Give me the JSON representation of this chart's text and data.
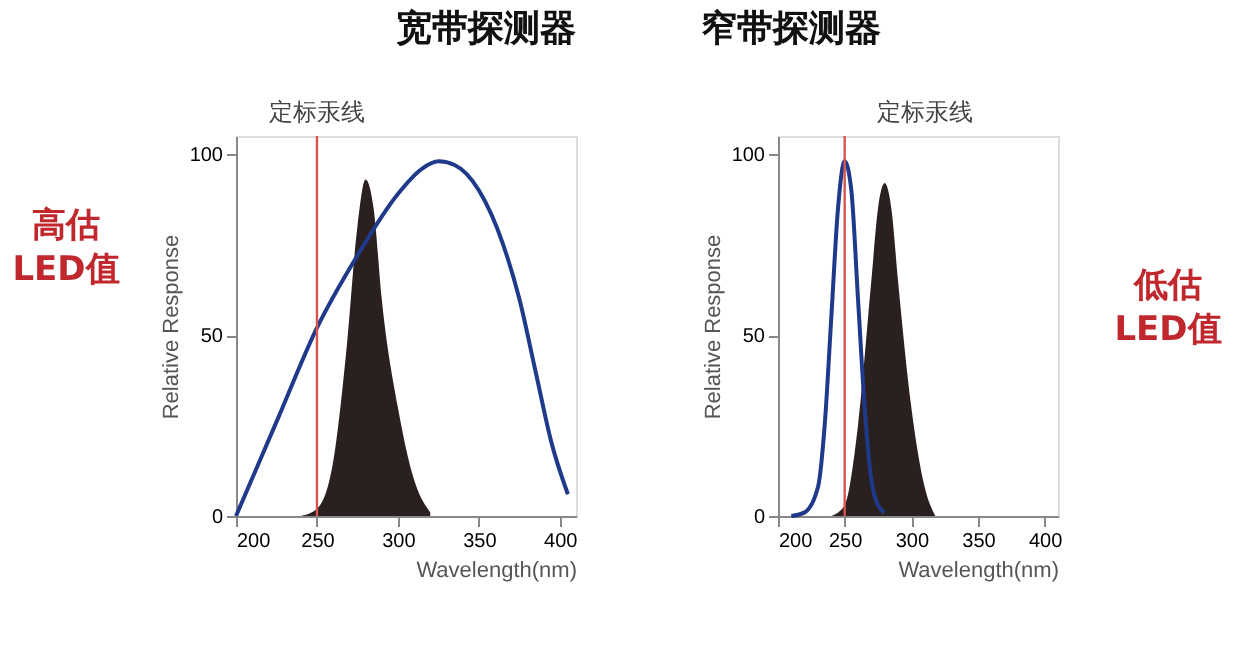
{
  "chart_data": [
    {
      "type": "line",
      "title": "宽带探测器",
      "xlabel": "Wavelength(nm)",
      "ylabel": "Relative Response",
      "xlim": [
        200,
        410
      ],
      "xticks": [
        200,
        250,
        300,
        350,
        400
      ],
      "ylim": [
        0,
        105
      ],
      "yticks": [
        0,
        50,
        100
      ],
      "grid": false,
      "series": [
        {
          "type": "area",
          "color": "#2b2020",
          "x": [
            240,
            250,
            260,
            268,
            275,
            280,
            285,
            290,
            300,
            310,
            320
          ],
          "values": [
            0,
            2,
            15,
            45,
            80,
            93,
            85,
            60,
            30,
            10,
            1
          ]
        },
        {
          "color": "#1f3a8a",
          "x": [
            200,
            225,
            250,
            275,
            300,
            315,
            325,
            335,
            350,
            365,
            375,
            385,
            395,
            405
          ],
          "values": [
            0,
            26,
            52,
            72,
            89,
            96,
            98,
            97,
            90,
            75,
            60,
            40,
            20,
            6
          ]
        }
      ],
      "ref_lines": [
        {
          "axis": "x",
          "value": 250,
          "label": "定标汞线",
          "color": "#d9534f"
        }
      ],
      "annotations": [
        "高估\nLED值"
      ]
    },
    {
      "type": "line",
      "title": "窄带探测器",
      "xlabel": "Wavelength(nm)",
      "ylabel": "Relative Response",
      "xlim": [
        200,
        410
      ],
      "xticks": [
        200,
        250,
        300,
        350,
        400
      ],
      "ylim": [
        0,
        105
      ],
      "yticks": [
        0,
        50,
        100
      ],
      "grid": false,
      "series": [
        {
          "type": "area",
          "color": "#2b2020",
          "x": [
            240,
            250,
            260,
            270,
            275,
            280,
            285,
            290,
            300,
            310,
            318
          ],
          "values": [
            0,
            3,
            25,
            65,
            85,
            92,
            85,
            65,
            30,
            8,
            0
          ]
        },
        {
          "color": "#1f3a8a",
          "x": [
            210,
            220,
            230,
            235,
            240,
            245,
            250,
            255,
            260,
            265,
            270,
            275,
            280
          ],
          "values": [
            0,
            1,
            8,
            25,
            55,
            85,
            98,
            90,
            60,
            30,
            10,
            3,
            1
          ]
        }
      ],
      "ref_lines": [
        {
          "axis": "x",
          "value": 250,
          "label": "定标汞线",
          "color": "#d9534f"
        }
      ],
      "annotations": [
        "低估\nLED值"
      ]
    }
  ]
}
